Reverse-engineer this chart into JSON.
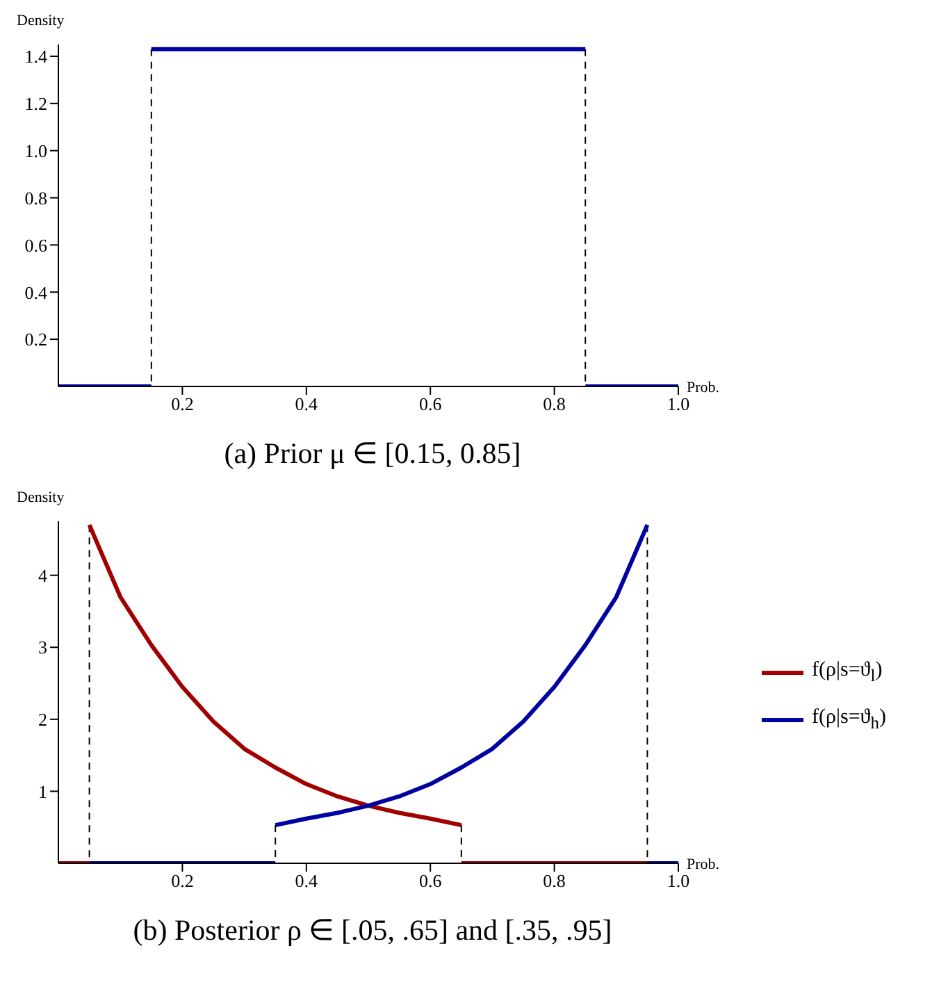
{
  "chart_data": [
    {
      "type": "line",
      "title": "(a) Prior μ ∈ [0.15, 0.85]",
      "xlabel": "Prob.",
      "ylabel": "Density",
      "xlim": [
        0,
        1
      ],
      "ylim": [
        0,
        1.45
      ],
      "xticks": [
        0.2,
        0.4,
        0.6,
        0.8,
        {
          "value": 1,
          "label": "1.0"
        }
      ],
      "yticks": [
        0.2,
        0.4,
        0.6,
        0.8,
        {
          "value": 1,
          "label": "1.0"
        },
        1.2,
        1.4
      ],
      "marker": "none",
      "series": [
        {
          "color": "#000000",
          "line_style": "dashed",
          "x": [
            0.15,
            0.15
          ],
          "values": [
            1.43,
            0
          ]
        },
        {
          "color": "#000000",
          "line_style": "dashed",
          "x": [
            0.85,
            0.85
          ],
          "values": [
            1.43,
            0
          ]
        },
        {
          "color": "#0000a0",
          "x": [
            0,
            0.15
          ],
          "values": [
            0,
            0
          ]
        },
        {
          "color": "#0000a0",
          "x": [
            0.15,
            0.85
          ],
          "values": [
            1.43,
            1.43
          ]
        },
        {
          "color": "#0000a0",
          "x": [
            0.85,
            1
          ],
          "values": [
            0,
            0
          ]
        }
      ]
    },
    {
      "type": "line",
      "title": "(b) Posterior ρ ∈ [.05, .65] and [.35, .95]",
      "xlabel": "Prob.",
      "ylabel": "Density",
      "xlim": [
        0,
        1
      ],
      "ylim": [
        0,
        4.75
      ],
      "xticks": [
        0.2,
        0.4,
        0.6,
        0.8,
        {
          "value": 1,
          "label": "1.0"
        }
      ],
      "yticks": [
        1,
        2,
        3,
        4
      ],
      "marker": "none",
      "legend": "right",
      "series": [
        {
          "color": "#000000",
          "line_style": "dashed",
          "x": [
            0.05,
            0.05
          ],
          "values": [
            4.7,
            0
          ]
        },
        {
          "color": "#000000",
          "line_style": "dashed",
          "x": [
            0.35,
            0.35
          ],
          "values": [
            0.53,
            0
          ]
        },
        {
          "color": "#000000",
          "line_style": "dashed",
          "x": [
            0.65,
            0.65
          ],
          "values": [
            0.53,
            0
          ]
        },
        {
          "color": "#000000",
          "line_style": "dashed",
          "x": [
            0.95,
            0.95
          ],
          "values": [
            4.7,
            0
          ]
        },
        {
          "color": "#a00000",
          "x": [
            0.65,
            1
          ],
          "values": [
            0,
            0
          ]
        },
        {
          "color": "#0000a0",
          "x": [
            0,
            0.35
          ],
          "values": [
            0,
            0
          ]
        },
        {
          "color": "#0000a0",
          "x": [
            0.95,
            1
          ],
          "values": [
            0,
            0
          ]
        },
        {
          "color": "#a00000",
          "x": [
            0,
            0.05
          ],
          "values": [
            0,
            0
          ]
        },
        {
          "name": "f(ρ|s=ϑ$_{l}$)",
          "color": "#a00000",
          "x": [
            0.05,
            0.1,
            0.15,
            0.2,
            0.25,
            0.3,
            0.35,
            0.4,
            0.45,
            0.5,
            0.55,
            0.6,
            0.65
          ],
          "values": [
            4.7,
            3.7,
            3.03,
            2.45,
            1.97,
            1.59,
            1.33,
            1.1,
            0.93,
            0.8,
            0.7,
            0.62,
            0.53
          ]
        },
        {
          "name": "f(ρ|s=ϑ$_{h}$)",
          "color": "#0000a0",
          "x": [
            0.35,
            0.4,
            0.45,
            0.5,
            0.55,
            0.6,
            0.65,
            0.7,
            0.75,
            0.8,
            0.85,
            0.9,
            0.95
          ],
          "values": [
            0.53,
            0.62,
            0.7,
            0.8,
            0.93,
            1.1,
            1.33,
            1.59,
            1.97,
            2.45,
            3.03,
            3.7,
            4.7
          ]
        }
      ]
    }
  ]
}
